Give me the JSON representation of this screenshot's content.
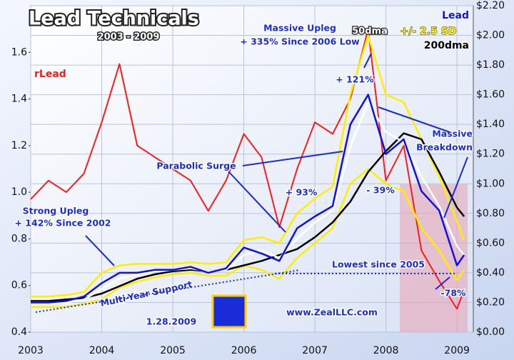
{
  "chart_data": {
    "type": "line",
    "title": "Lead Technicals",
    "subtitle": "2003 - 2009",
    "x": [
      2003,
      2003.25,
      2003.5,
      2003.75,
      2004,
      2004.25,
      2004.5,
      2004.75,
      2005,
      2005.25,
      2005.5,
      2005.75,
      2006,
      2006.25,
      2006.5,
      2006.75,
      2007,
      2007.25,
      2007.5,
      2007.75,
      2008,
      2008.25,
      2008.5,
      2008.75,
      2009,
      2009.1
    ],
    "xlim": [
      2003,
      2009.23
    ],
    "xticks": [
      2003,
      2004,
      2005,
      2006,
      2007,
      2008,
      2009
    ],
    "ylim": [
      0.4,
      1.8
    ],
    "yticks": [
      {
        "value": 0.4,
        "label": "0.4"
      },
      0.6,
      0.8,
      {
        "value": 1,
        "label": "1.0"
      },
      1.2,
      1.4,
      1.6
    ],
    "y2lim": [
      0,
      2.2
    ],
    "y2ticks": [
      {
        "value": 0,
        "label": "$0.00"
      },
      {
        "value": 0.2,
        "label": "$0.20"
      },
      {
        "value": 0.4,
        "label": "$0.40"
      },
      {
        "value": 0.6,
        "label": "$0.60"
      },
      {
        "value": 0.8,
        "label": "$0.80"
      },
      {
        "value": 1,
        "label": "$1.00"
      },
      {
        "value": 1.2,
        "label": "$1.20"
      },
      {
        "value": 1.4,
        "label": "$1.40"
      },
      {
        "value": 1.6,
        "label": "$1.60"
      },
      {
        "value": 1.8,
        "label": "$1.80"
      },
      {
        "value": 2,
        "label": "$2.00"
      },
      {
        "value": 2.2,
        "label": "$2.20"
      }
    ],
    "grid": true,
    "series": [
      {
        "name": "rLead",
        "color": "#ff1a1a",
        "axis": "y",
        "values": [
          0.97,
          1.05,
          1.0,
          1.08,
          1.3,
          1.55,
          1.2,
          1.15,
          1.1,
          1.05,
          0.92,
          1.05,
          1.25,
          1.15,
          0.85,
          1.1,
          1.3,
          1.25,
          1.4,
          1.7,
          1.05,
          1.2,
          0.75,
          0.62,
          0.5,
          0.58
        ]
      },
      {
        "name": "+/- 2.5 SD",
        "color": "#ffee00",
        "axis": "y2",
        "values": [
          0.24,
          0.24,
          0.25,
          0.27,
          0.4,
          0.45,
          0.46,
          0.46,
          0.46,
          0.47,
          0.46,
          0.47,
          0.62,
          0.64,
          0.6,
          0.8,
          0.9,
          0.98,
          1.6,
          2.0,
          1.6,
          1.55,
          1.3,
          1.05,
          0.75,
          0.62
        ],
        "lower": [
          0.17,
          0.17,
          0.17,
          0.19,
          0.22,
          0.3,
          0.34,
          0.37,
          0.39,
          0.4,
          0.38,
          0.38,
          0.45,
          0.42,
          0.36,
          0.5,
          0.6,
          0.7,
          1.0,
          1.1,
          1.0,
          0.95,
          0.7,
          0.55,
          0.35,
          0.42
        ]
      },
      {
        "name": "200dma",
        "color": "#000000",
        "axis": "y2",
        "values": [
          0.21,
          0.21,
          0.22,
          0.23,
          0.26,
          0.31,
          0.36,
          0.39,
          0.41,
          0.42,
          0.41,
          0.42,
          0.45,
          0.48,
          0.52,
          0.56,
          0.64,
          0.74,
          0.88,
          1.08,
          1.22,
          1.34,
          1.3,
          1.08,
          0.84,
          0.78
        ]
      },
      {
        "name": "50dma",
        "color": "#ffffff",
        "axis": "y2",
        "values": [
          0.2,
          0.2,
          0.2,
          0.22,
          0.29,
          0.36,
          0.39,
          0.41,
          0.42,
          0.43,
          0.41,
          0.42,
          0.52,
          0.55,
          0.5,
          0.63,
          0.74,
          0.82,
          1.25,
          1.55,
          1.35,
          1.28,
          1.05,
          0.85,
          0.58,
          0.52
        ]
      },
      {
        "name": "Lead",
        "color": "#1010e0",
        "axis": "y2",
        "values": [
          0.2,
          0.2,
          0.21,
          0.24,
          0.33,
          0.4,
          0.4,
          0.42,
          0.42,
          0.44,
          0.4,
          0.43,
          0.57,
          0.53,
          0.48,
          0.7,
          0.78,
          0.85,
          1.4,
          1.6,
          1.2,
          1.3,
          0.95,
          0.82,
          0.45,
          0.52
        ]
      }
    ],
    "annotations": [
      "Massive Upleg",
      "+ 335% Since 2006 Low",
      "+ 121%",
      "Parabolic Surge",
      "+ 93%",
      "- 39%",
      "Massive",
      "Breakdown",
      "Strong Upleg",
      "+ 142% Since 2002",
      "Lowest since 2005",
      "Multi-Year Support",
      "-78%",
      "1.28.2009",
      "www.ZealLLC.com"
    ]
  }
}
